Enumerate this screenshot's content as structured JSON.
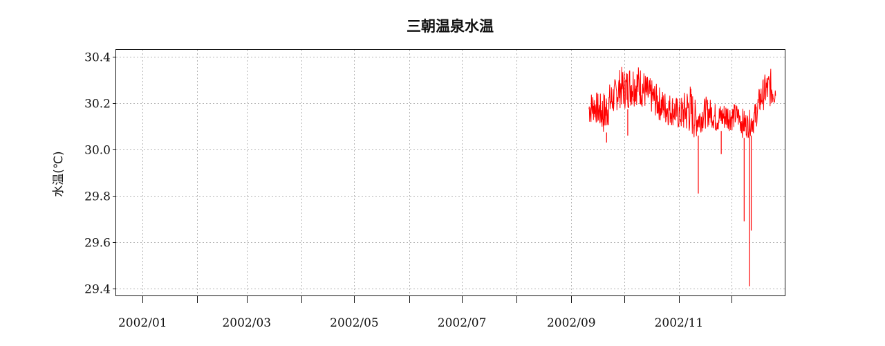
{
  "chart_data": {
    "type": "line",
    "title": "三朝温泉水温",
    "xlabel": "",
    "ylabel": "水温(℃)",
    "xlim": [
      "2001-12-17",
      "2002-12-31"
    ],
    "ylim": [
      29.37,
      30.43
    ],
    "x_major_ticks": [
      "2002-01-01",
      "2002-03-01",
      "2002-05-01",
      "2002-07-01",
      "2002-09-01",
      "2002-11-01"
    ],
    "x_tick_labels": [
      "2002/01",
      "2002/03",
      "2002/05",
      "2002/07",
      "2002/09",
      "2002/11"
    ],
    "x_minor_ticks": [
      "2002-02-01",
      "2002-04-01",
      "2002-06-01",
      "2002-08-01",
      "2002-10-01",
      "2002-12-01"
    ],
    "y_ticks": [
      29.4,
      29.6,
      29.8,
      30.0,
      30.2,
      30.4
    ],
    "y_tick_labels": [
      "29.4",
      "29.6",
      "29.8",
      "30.0",
      "30.2",
      "30.4"
    ],
    "grid": true,
    "series": [
      {
        "color": "#ff0000",
        "band": [
          {
            "date": "2002-09-11",
            "low": 30.1,
            "high": 30.25
          },
          {
            "date": "2002-09-14",
            "low": 30.12,
            "high": 30.26
          },
          {
            "date": "2002-09-17",
            "low": 30.09,
            "high": 30.24
          },
          {
            "date": "2002-09-20",
            "low": 30.05,
            "high": 30.26
          },
          {
            "date": "2002-09-23",
            "low": 30.12,
            "high": 30.29
          },
          {
            "date": "2002-09-26",
            "low": 30.16,
            "high": 30.31
          },
          {
            "date": "2002-09-29",
            "low": 30.18,
            "high": 30.36
          },
          {
            "date": "2002-10-02",
            "low": 30.17,
            "high": 30.35
          },
          {
            "date": "2002-10-05",
            "low": 30.18,
            "high": 30.38
          },
          {
            "date": "2002-10-08",
            "low": 30.19,
            "high": 30.37
          },
          {
            "date": "2002-10-11",
            "low": 30.18,
            "high": 30.36
          },
          {
            "date": "2002-10-14",
            "low": 30.16,
            "high": 30.32
          },
          {
            "date": "2002-10-17",
            "low": 30.15,
            "high": 30.3
          },
          {
            "date": "2002-10-20",
            "low": 30.13,
            "high": 30.28
          },
          {
            "date": "2002-10-23",
            "low": 30.11,
            "high": 30.26
          },
          {
            "date": "2002-10-26",
            "low": 30.1,
            "high": 30.25
          },
          {
            "date": "2002-10-29",
            "low": 30.1,
            "high": 30.24
          },
          {
            "date": "2002-11-01",
            "low": 30.08,
            "high": 30.22
          },
          {
            "date": "2002-11-04",
            "low": 30.07,
            "high": 30.25
          },
          {
            "date": "2002-11-07",
            "low": 30.06,
            "high": 30.3
          },
          {
            "date": "2002-11-10",
            "low": 30.04,
            "high": 30.22
          },
          {
            "date": "2002-11-13",
            "low": 30.07,
            "high": 30.2
          },
          {
            "date": "2002-11-16",
            "low": 30.09,
            "high": 30.23
          },
          {
            "date": "2002-11-19",
            "low": 30.1,
            "high": 30.22
          },
          {
            "date": "2002-11-22",
            "low": 30.07,
            "high": 30.2
          },
          {
            "date": "2002-11-25",
            "low": 30.08,
            "high": 30.2
          },
          {
            "date": "2002-11-28",
            "low": 30.08,
            "high": 30.21
          },
          {
            "date": "2002-12-01",
            "low": 30.08,
            "high": 30.2
          },
          {
            "date": "2002-12-04",
            "low": 30.1,
            "high": 30.2
          },
          {
            "date": "2002-12-07",
            "low": 30.05,
            "high": 30.18
          },
          {
            "date": "2002-12-10",
            "low": 30.05,
            "high": 30.16
          },
          {
            "date": "2002-12-14",
            "low": 30.07,
            "high": 30.2
          },
          {
            "date": "2002-12-17",
            "low": 30.15,
            "high": 30.28
          },
          {
            "date": "2002-12-20",
            "low": 30.18,
            "high": 30.33
          },
          {
            "date": "2002-12-23",
            "low": 30.18,
            "high": 30.35
          },
          {
            "date": "2002-12-26",
            "low": 30.18,
            "high": 30.33
          }
        ],
        "spikes": [
          {
            "date": "2002-09-21",
            "value": 30.03
          },
          {
            "date": "2002-10-03",
            "value": 30.06
          },
          {
            "date": "2002-11-12",
            "value": 29.81
          },
          {
            "date": "2002-11-25",
            "value": 29.98
          },
          {
            "date": "2002-12-08",
            "value": 29.69
          },
          {
            "date": "2002-12-11",
            "value": 29.41
          },
          {
            "date": "2002-12-12",
            "value": 29.65
          }
        ]
      }
    ]
  }
}
